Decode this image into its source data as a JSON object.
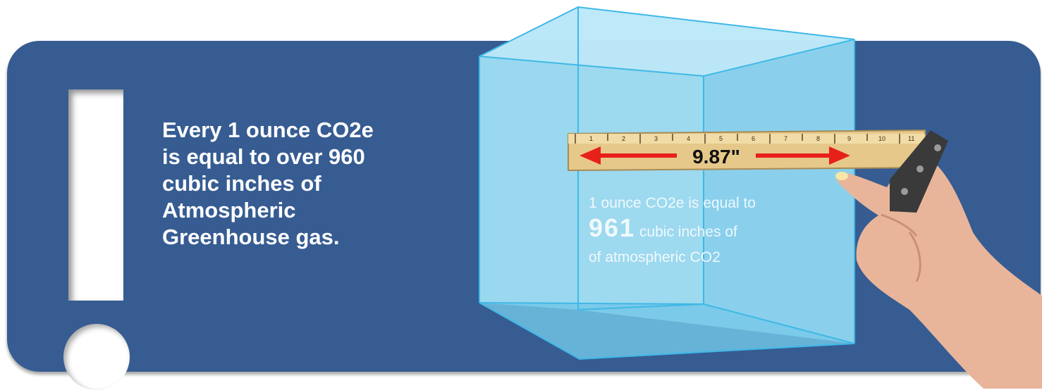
{
  "fact": {
    "lines": [
      "Every 1 ounce CO2e",
      "is equal to over 960",
      "cubic inches of",
      "Atmospheric",
      "Greenhouse gas."
    ]
  },
  "ruler": {
    "measurement": "9.87\"",
    "tick_numbers": [
      "1",
      "2",
      "3",
      "4",
      "5",
      "6",
      "7",
      "8",
      "9",
      "10",
      "11"
    ]
  },
  "cube_caption": {
    "line1": "1 ounce CO2e is equal to",
    "number": "961",
    "line2_rest": "cubic inches of",
    "line3": "of atmospheric CO2"
  },
  "colors": {
    "panel": "#365c92",
    "cube": "#7fd3f0",
    "arrow": "#e8201a",
    "ruler": "#e6c98a"
  }
}
